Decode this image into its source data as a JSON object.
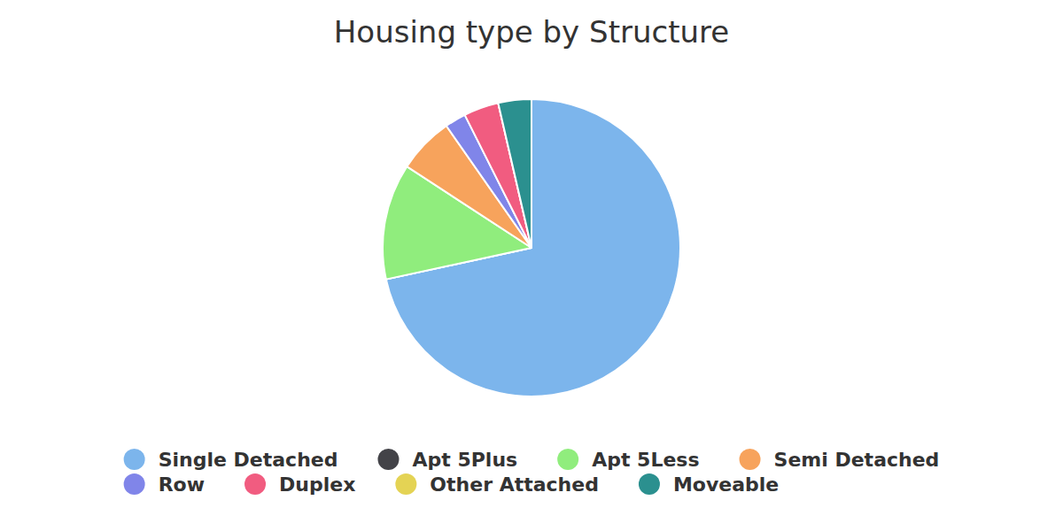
{
  "chart_data": {
    "type": "pie",
    "title": "Housing type by Structure",
    "categories": [
      "Single Detached",
      "Apt 5Plus",
      "Apt 5Less",
      "Semi Detached",
      "Row",
      "Duplex",
      "Other Attached",
      "Moveable"
    ],
    "values": [
      71.6,
      0,
      12.6,
      6.1,
      2.3,
      3.8,
      0,
      3.6
    ],
    "colors": [
      "#7cb5ec",
      "#434348",
      "#90ed7d",
      "#f7a35c",
      "#8085e9",
      "#f15c80",
      "#e4d354",
      "#2b908f"
    ],
    "legend": "bottom"
  }
}
